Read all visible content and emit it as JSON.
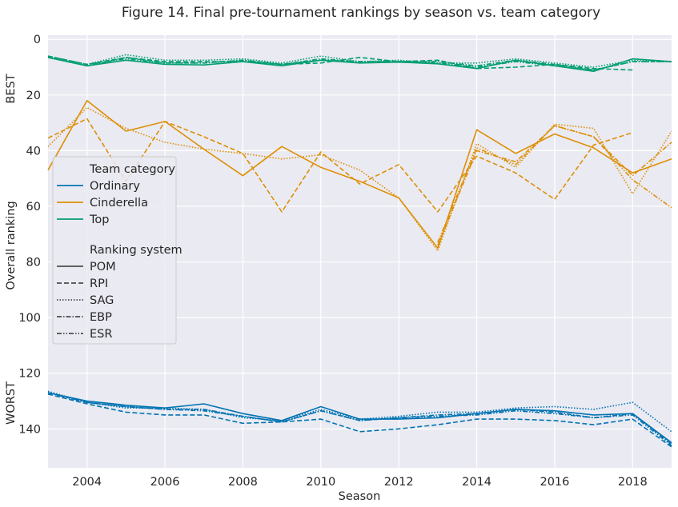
{
  "chart_data": {
    "type": "line",
    "title": "Figure 14. Final pre-tournament rankings by season vs. team category",
    "xlabel": "Season",
    "ylabel": "Overall ranking",
    "side_labels": {
      "best": "BEST",
      "worst": "WORST"
    },
    "xlim": [
      2003,
      2019
    ],
    "ylim": [
      154,
      -1.5
    ],
    "y_inverted": true,
    "grid": true,
    "x_ticks": [
      2004,
      2006,
      2008,
      2010,
      2012,
      2014,
      2016,
      2018
    ],
    "y_ticks": [
      0,
      20,
      40,
      60,
      80,
      100,
      120,
      140
    ],
    "x": [
      2003,
      2004,
      2005,
      2006,
      2007,
      2008,
      2009,
      2010,
      2011,
      2012,
      2013,
      2014,
      2015,
      2016,
      2017,
      2018,
      2019
    ],
    "legend": {
      "placement": "center-left",
      "category_title": "Team category",
      "categories": [
        {
          "label": "Ordinary",
          "color": "#0173b2"
        },
        {
          "label": "Cinderella",
          "color": "#de8f05"
        },
        {
          "label": "Top",
          "color": "#029e73"
        }
      ],
      "system_title": "Ranking system",
      "systems": [
        {
          "label": "POM",
          "dash": "solid"
        },
        {
          "label": "RPI",
          "dash": "dashed"
        },
        {
          "label": "SAG",
          "dash": "dotted"
        },
        {
          "label": "EBP",
          "dash": "dashdot"
        },
        {
          "label": "ESR",
          "dash": "dashdotdot"
        }
      ]
    },
    "series": [
      {
        "category": "Top",
        "system": "POM",
        "values": [
          6.5,
          9.5,
          7.5,
          9,
          9.2,
          8,
          9.5,
          7.5,
          8.5,
          8.2,
          8.8,
          10.5,
          7.5,
          9.5,
          11.5,
          7,
          8
        ]
      },
      {
        "category": "Top",
        "system": "RPI",
        "values": [
          6,
          9,
          6.5,
          8,
          8,
          8,
          9,
          8.5,
          6.5,
          8,
          7.5,
          10.5,
          10,
          9,
          10.5,
          11,
          null
        ]
      },
      {
        "category": "Top",
        "system": "SAG",
        "values": [
          6.5,
          9,
          5.5,
          7.5,
          7.5,
          7,
          8.5,
          6,
          8,
          7.5,
          8.5,
          8.5,
          7,
          8.5,
          10,
          7.5,
          8
        ]
      },
      {
        "category": "Top",
        "system": "EBP",
        "values": [
          6.5,
          9.5,
          6.5,
          8.5,
          8.5,
          7.5,
          9,
          7,
          8,
          8,
          8,
          9.5,
          7.5,
          9,
          11,
          8,
          8
        ]
      },
      {
        "category": "Top",
        "system": "ESR",
        "values": [
          6,
          9,
          7,
          8.5,
          8.5,
          7.5,
          9,
          7.5,
          8,
          8,
          8.5,
          10,
          8,
          9.5,
          11,
          8,
          8
        ]
      },
      {
        "category": "Cinderella",
        "system": "POM",
        "values": [
          47,
          22,
          33,
          29.5,
          39.5,
          49,
          38.5,
          46,
          51,
          57,
          75,
          32.5,
          41,
          34,
          39,
          48,
          43
        ]
      },
      {
        "category": "Cinderella",
        "system": "RPI",
        "values": [
          35.5,
          28.5,
          51,
          29.5,
          35,
          41,
          62,
          40.5,
          52,
          45,
          62,
          42,
          48,
          57.5,
          38,
          33.5,
          null
        ]
      },
      {
        "category": "Cinderella",
        "system": "SAG",
        "values": [
          38.5,
          24.5,
          32,
          37,
          39.5,
          41,
          43,
          41.5,
          47,
          57,
          76,
          37.5,
          46,
          30.5,
          32,
          55.5,
          33
        ]
      },
      {
        "category": "Cinderella",
        "system": "EBP",
        "values": [
          null,
          null,
          null,
          null,
          null,
          null,
          null,
          null,
          null,
          null,
          74,
          40,
          44,
          31,
          35,
          49,
          37
        ]
      },
      {
        "category": "Cinderella",
        "system": "ESR",
        "values": [
          null,
          null,
          null,
          null,
          null,
          null,
          null,
          null,
          null,
          null,
          73,
          39,
          45,
          31,
          35,
          50.5,
          60.5
        ]
      },
      {
        "category": "Ordinary",
        "system": "POM",
        "values": [
          127,
          130,
          131.5,
          132.5,
          131,
          134.5,
          137,
          132,
          136.5,
          136.5,
          136,
          134.5,
          133,
          133.5,
          135,
          134.5,
          145
        ]
      },
      {
        "category": "Ordinary",
        "system": "RPI",
        "values": [
          127.5,
          131,
          134,
          135,
          135,
          138,
          137.5,
          136.5,
          141,
          140,
          138.5,
          136.5,
          136.5,
          137,
          138.5,
          136.5,
          146.5
        ]
      },
      {
        "category": "Ordinary",
        "system": "SAG",
        "values": [
          126.5,
          130.5,
          132.5,
          132.5,
          133,
          136,
          137,
          133,
          136.5,
          135.5,
          134,
          134,
          132.5,
          132,
          133,
          130.5,
          141
        ]
      },
      {
        "category": "Ordinary",
        "system": "EBP",
        "values": [
          127,
          130.5,
          132,
          133,
          133,
          135.5,
          137.5,
          133.5,
          137,
          136,
          135,
          134.5,
          133,
          134,
          136,
          134.5,
          145.5
        ]
      },
      {
        "category": "Ordinary",
        "system": "ESR",
        "values": [
          127,
          130.5,
          132,
          133,
          133.5,
          135.5,
          137.5,
          133.5,
          137,
          136,
          135.5,
          135,
          133.5,
          134.5,
          136,
          135,
          146
        ]
      }
    ]
  }
}
